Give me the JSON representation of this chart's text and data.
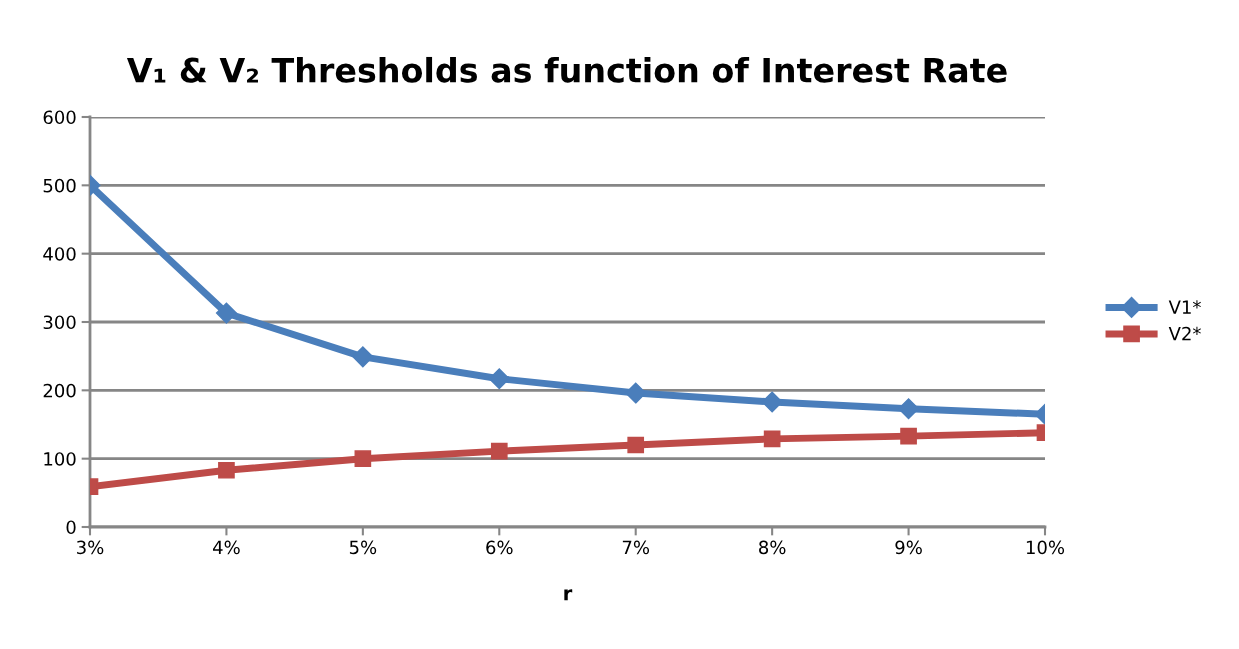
{
  "chart_data": {
    "type": "line",
    "title": "V₁ & V₂ Thresholds as function of Interest Rate",
    "xlabel": "r",
    "categories": [
      "3%",
      "4%",
      "5%",
      "6%",
      "7%",
      "8%",
      "9%",
      "10%"
    ],
    "series": [
      {
        "name": "V1*",
        "color": "#4a7ebb",
        "marker": "diamond",
        "values": [
          500,
          313,
          249,
          217,
          196,
          183,
          173,
          165
        ]
      },
      {
        "name": "V2*",
        "color": "#be4b48",
        "marker": "square",
        "values": [
          59,
          83,
          100,
          111,
          120,
          129,
          133,
          138
        ]
      }
    ],
    "ylim": [
      0,
      600
    ],
    "yticks": [
      0,
      100,
      200,
      300,
      400,
      500,
      600
    ],
    "grid": "y",
    "legend": "right"
  }
}
